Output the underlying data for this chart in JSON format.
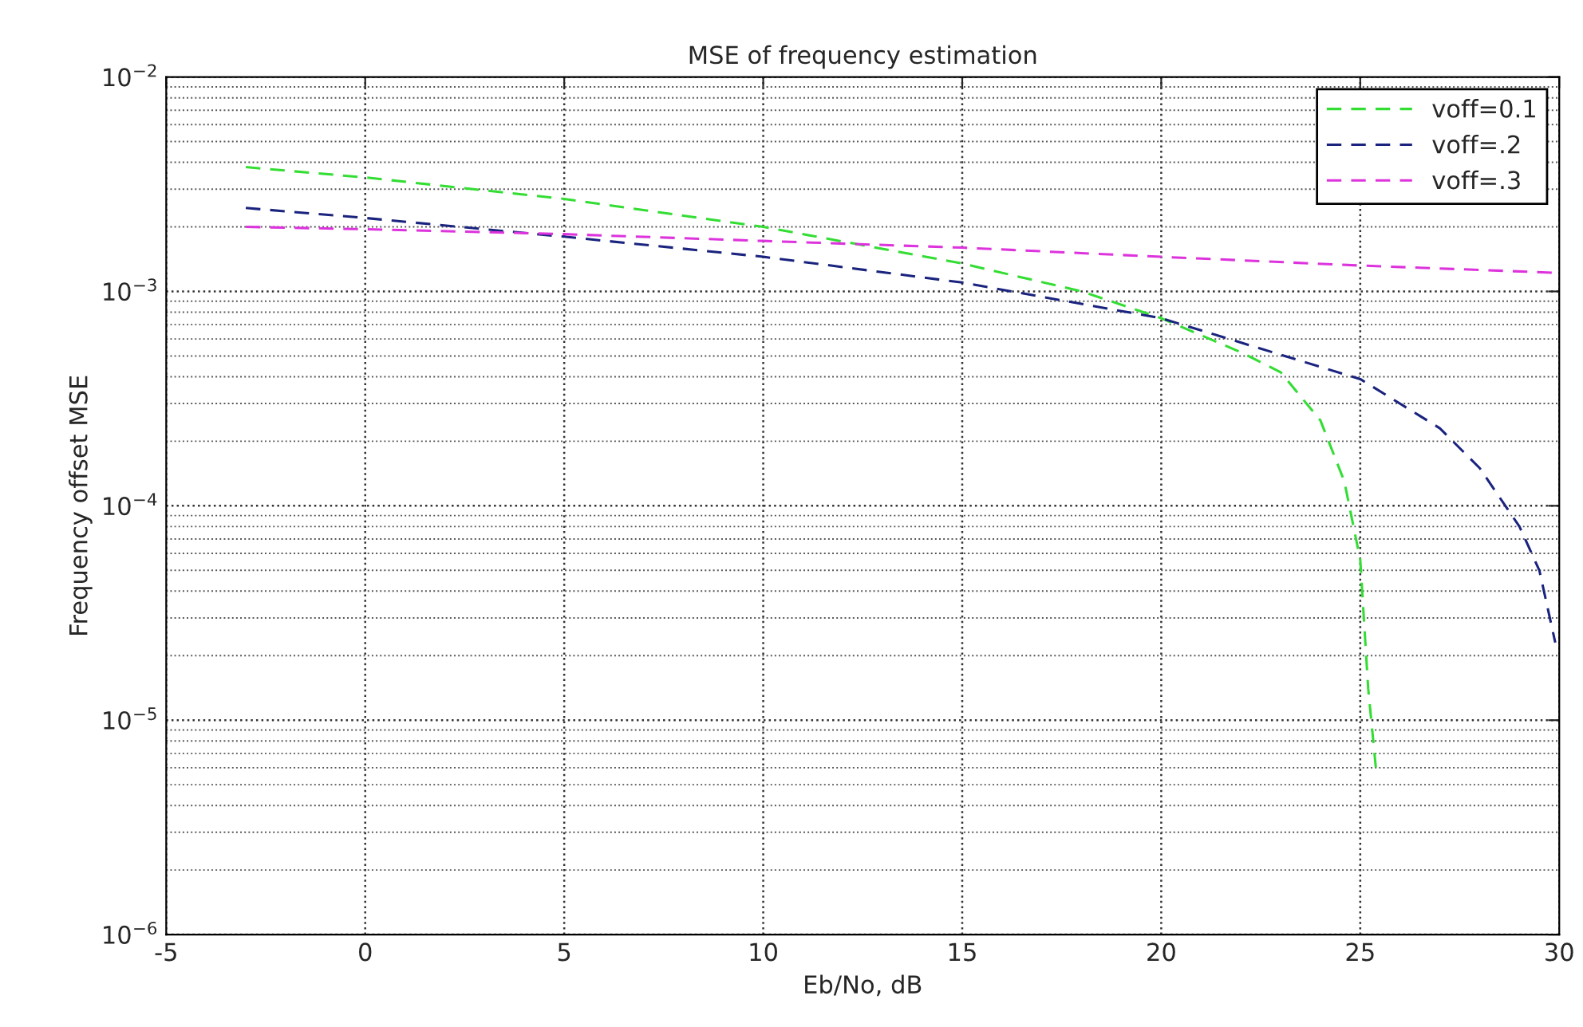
{
  "chart_data": {
    "type": "line",
    "title": "MSE of frequency estimation",
    "xlabel": "Eb/No, dB",
    "ylabel": "Frequency offset MSE",
    "xlim": [
      -5,
      30
    ],
    "xticks": [
      -5,
      0,
      5,
      10,
      15,
      20,
      25,
      30
    ],
    "ylim": [
      1e-06,
      0.01
    ],
    "yticks": [
      {
        "value": 1e-06,
        "label": "10$^{−6}$"
      },
      {
        "value": 1e-05,
        "label": "10$^{−5}$"
      },
      {
        "value": 0.0001,
        "label": "10$^{−4}$"
      },
      {
        "value": 0.001,
        "label": "10$^{−3}$"
      },
      {
        "value": 0.01,
        "label": "10$^{−2}$"
      }
    ],
    "log": "y",
    "grid": true,
    "legend": "top right",
    "line_style": "dashed",
    "marker": "none",
    "series": [
      {
        "name": "voff=0.1",
        "color": "#33dd33",
        "x": [
          -3,
          0,
          5,
          10,
          15,
          18,
          20,
          22,
          23,
          24,
          24.6,
          25,
          25.2,
          25.4
        ],
        "values": [
          0.0038,
          0.0034,
          0.0027,
          0.002,
          0.00135,
          0.001,
          0.00075,
          0.00052,
          0.00042,
          0.00025,
          0.00013,
          5.6e-05,
          1.4e-05,
          5.8e-06
        ]
      },
      {
        "name": "voff=.2",
        "color": "#1a237e",
        "x": [
          -3,
          0,
          5,
          10,
          15,
          20,
          25,
          27,
          28,
          29,
          29.5,
          29.9
        ],
        "values": [
          0.00245,
          0.0022,
          0.0018,
          0.00145,
          0.0011,
          0.00075,
          0.00039,
          0.00023,
          0.00015,
          8e-05,
          5e-05,
          2.3e-05
        ]
      },
      {
        "name": "voff=.3",
        "color": "#dd33dd",
        "x": [
          -3,
          0,
          5,
          10,
          15,
          20,
          25,
          30
        ],
        "values": [
          0.002,
          0.00195,
          0.00185,
          0.00172,
          0.0016,
          0.00145,
          0.00132,
          0.00122
        ]
      }
    ]
  }
}
